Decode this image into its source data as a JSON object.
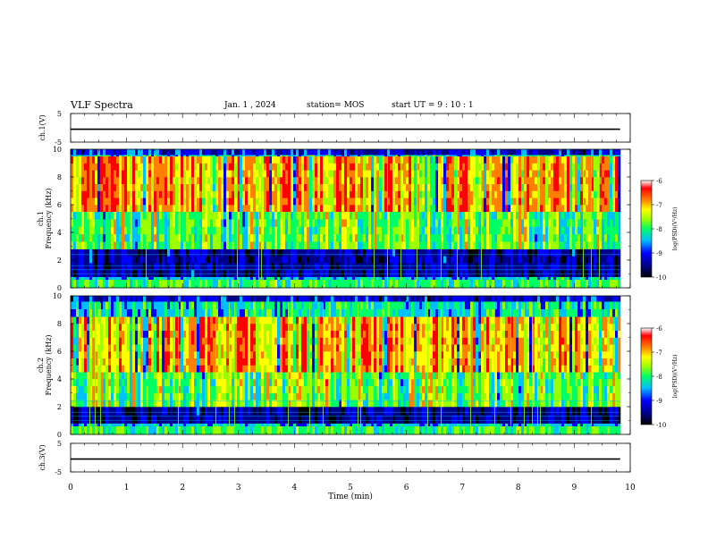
{
  "header": {
    "title": "VLF Spectra",
    "date": "Jan. 1 , 2024",
    "station": "station= MOS",
    "start_ut": "start UT =  9 : 10 : 1"
  },
  "chart_data": [
    {
      "type": "line",
      "panel": "ch1-waveform",
      "ylabel": "ch.1(V)",
      "yticks": [
        "5",
        "-5"
      ],
      "ylim": [
        -5,
        5
      ],
      "series": [
        {
          "values_description": "near-flat waveform trace at about -0.5 V",
          "level": -0.5
        }
      ]
    },
    {
      "type": "heatmap",
      "panel": "ch1-spectrogram",
      "ylabel": [
        "ch.1",
        "Frequency (kHz)"
      ],
      "yticks": [
        "0",
        "2",
        "4",
        "6",
        "8",
        "10"
      ],
      "ylim": [
        0,
        10
      ],
      "colorbar": {
        "label": "log(PSD)(V²/Hz)",
        "ticks": [
          "-6",
          "-7",
          "-8",
          "-9",
          "-10"
        ],
        "range": [
          -10,
          -6
        ]
      },
      "features": {
        "high_intensity_band_khz": [
          5.5,
          9.5
        ],
        "quiet_band_khz": [
          0.8,
          2.8
        ]
      }
    },
    {
      "type": "heatmap",
      "panel": "ch2-spectrogram",
      "ylabel": [
        "ch.2",
        "Frequency (kHz)"
      ],
      "yticks": [
        "0",
        "2",
        "4",
        "6",
        "8",
        "10"
      ],
      "ylim": [
        0,
        10
      ],
      "colorbar": {
        "label": "log(PSD)(V²/Hz)",
        "ticks": [
          "-6",
          "-7",
          "-8",
          "-9",
          "-10"
        ],
        "range": [
          -10,
          -6
        ]
      },
      "features": {
        "high_intensity_band_khz": [
          4.5,
          8.5
        ],
        "quiet_band_khz": [
          0.8,
          2.0
        ]
      }
    },
    {
      "type": "line",
      "panel": "ch3-waveform",
      "ylabel": "ch.3(V)",
      "yticks": [
        "5",
        "-5"
      ],
      "ylim": [
        -5,
        5
      ],
      "series": [
        {
          "values_description": "near-flat waveform trace at about -0.5 V",
          "level": -0.5
        }
      ]
    }
  ],
  "x_axis": {
    "label": "Time  (min)",
    "ticks": [
      "0",
      "1",
      "2",
      "3",
      "4",
      "5",
      "6",
      "7",
      "8",
      "9",
      "10"
    ],
    "xlim": [
      0,
      10
    ],
    "data_end_min": 9.82
  },
  "colormap": [
    "#000000",
    "#00008b",
    "#0000ff",
    "#00bfff",
    "#00ff66",
    "#9aff00",
    "#ffff00",
    "#ff8000",
    "#ff0000",
    "#ffffff"
  ]
}
